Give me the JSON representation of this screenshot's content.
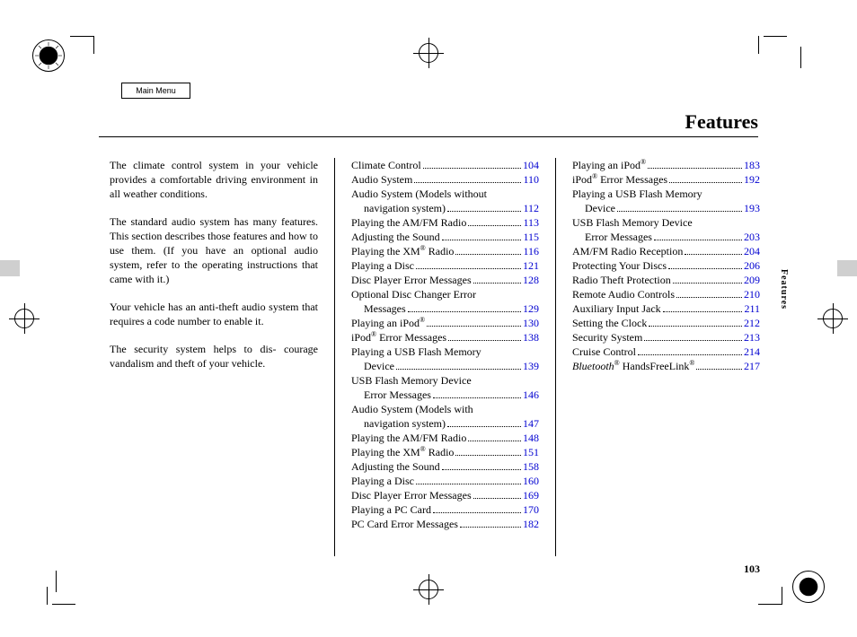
{
  "button_label": "Main Menu",
  "heading": "Features",
  "side_tab": "Features",
  "page_number": "103",
  "link_color": "#0000d0",
  "intro_paragraphs": [
    "The climate control system in your vehicle provides a comfortable driving environment in all weather conditions.",
    "The standard audio system has many features. This section describes those features and how to use them. (If you have an optional audio system, refer to the operating instructions that came with it.)",
    "Your vehicle has an anti-theft audio system that requires a code number to enable it.",
    "The security system helps to dis- courage vandalism and theft of your vehicle."
  ],
  "toc_col_a": [
    {
      "label": "Climate Control",
      "page": "104"
    },
    {
      "label": "Audio System",
      "page": "110"
    },
    {
      "label": "Audio System (Models without",
      "wrap": true
    },
    {
      "label": "navigation system)",
      "page": "112",
      "indent": true
    },
    {
      "label": "Playing the AM/FM Radio",
      "page": "113"
    },
    {
      "label": "Adjusting the Sound",
      "page": "115"
    },
    {
      "label": "Playing the XM<sup>®</sup> Radio",
      "page": "116"
    },
    {
      "label": "Playing a Disc",
      "page": "121"
    },
    {
      "label": "Disc Player Error Messages",
      "page": "128"
    },
    {
      "label": "Optional Disc Changer Error",
      "wrap": true
    },
    {
      "label": "Messages",
      "page": "129",
      "indent": true
    },
    {
      "label": "Playing an iPod<sup>®</sup>",
      "page": "130"
    },
    {
      "label": "iPod<sup>®</sup> Error Messages",
      "page": "138"
    },
    {
      "label": "Playing a USB Flash Memory",
      "wrap": true
    },
    {
      "label": "Device",
      "page": "139",
      "indent": true
    },
    {
      "label": "USB Flash Memory Device",
      "wrap": true
    },
    {
      "label": "Error Messages",
      "page": "146",
      "indent": true
    },
    {
      "label": "Audio System (Models with",
      "wrap": true
    },
    {
      "label": "navigation system)",
      "page": "147",
      "indent": true
    },
    {
      "label": "Playing the AM/FM Radio",
      "page": "148"
    },
    {
      "label": "Playing the XM<sup>®</sup> Radio",
      "page": "151"
    },
    {
      "label": "Adjusting the Sound",
      "page": "158"
    },
    {
      "label": "Playing a Disc",
      "page": "160"
    },
    {
      "label": "Disc Player Error Messages",
      "page": "169"
    },
    {
      "label": "Playing a PC Card",
      "page": "170"
    },
    {
      "label": "PC Card Error Messages",
      "page": "182"
    }
  ],
  "toc_col_b": [
    {
      "label": "Playing an iPod<sup>®</sup>",
      "page": "183"
    },
    {
      "label": "iPod<sup>®</sup> Error Messages",
      "page": "192"
    },
    {
      "label": "Playing a USB Flash Memory",
      "wrap": true
    },
    {
      "label": "Device",
      "page": "193",
      "indent": true
    },
    {
      "label": "USB Flash Memory Device",
      "wrap": true
    },
    {
      "label": "Error Messages",
      "page": "203",
      "indent": true
    },
    {
      "label": "AM/FM Radio Reception",
      "page": "204"
    },
    {
      "label": "Protecting Your Discs",
      "page": "206"
    },
    {
      "label": "Radio Theft Protection",
      "page": "209"
    },
    {
      "label": "Remote Audio Controls",
      "page": "210"
    },
    {
      "label": "Auxiliary Input Jack",
      "page": "211"
    },
    {
      "label": "Setting the Clock",
      "page": "212"
    },
    {
      "label": "Security System",
      "page": "213"
    },
    {
      "label": "Cruise Control",
      "page": "214"
    },
    {
      "label": "<span class=\"italic\">Bluetooth</span><sup>®</sup> HandsFreeLink<sup>®</sup>",
      "page": "217"
    }
  ]
}
